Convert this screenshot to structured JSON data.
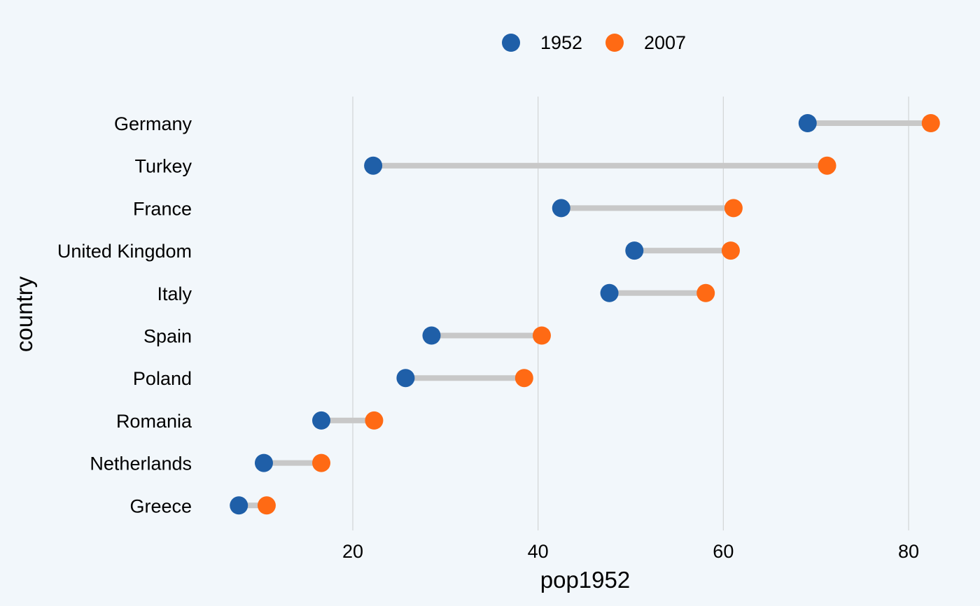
{
  "chart_data": {
    "type": "dumbbell",
    "xlabel": "pop1952",
    "ylabel": "country",
    "xlim": [
      5,
      83
    ],
    "xticks": [
      20,
      40,
      60,
      80
    ],
    "grid": "vertical",
    "legend_placement": "top-center",
    "categories": [
      "Germany",
      "Turkey",
      "France",
      "United Kingdom",
      "Italy",
      "Spain",
      "Poland",
      "Romania",
      "Netherlands",
      "Greece"
    ],
    "series": [
      {
        "name": "1952",
        "color": "#1f5fa8",
        "values": [
          69.1,
          22.2,
          42.5,
          50.4,
          47.7,
          28.5,
          25.7,
          16.6,
          10.4,
          7.7
        ]
      },
      {
        "name": "2007",
        "color": "#ff6a14",
        "values": [
          82.4,
          71.2,
          61.1,
          60.8,
          58.1,
          40.4,
          38.5,
          22.3,
          16.6,
          10.7
        ]
      }
    ],
    "connector_color": "#c8c8c8",
    "grid_color": "#d2d4d6"
  }
}
